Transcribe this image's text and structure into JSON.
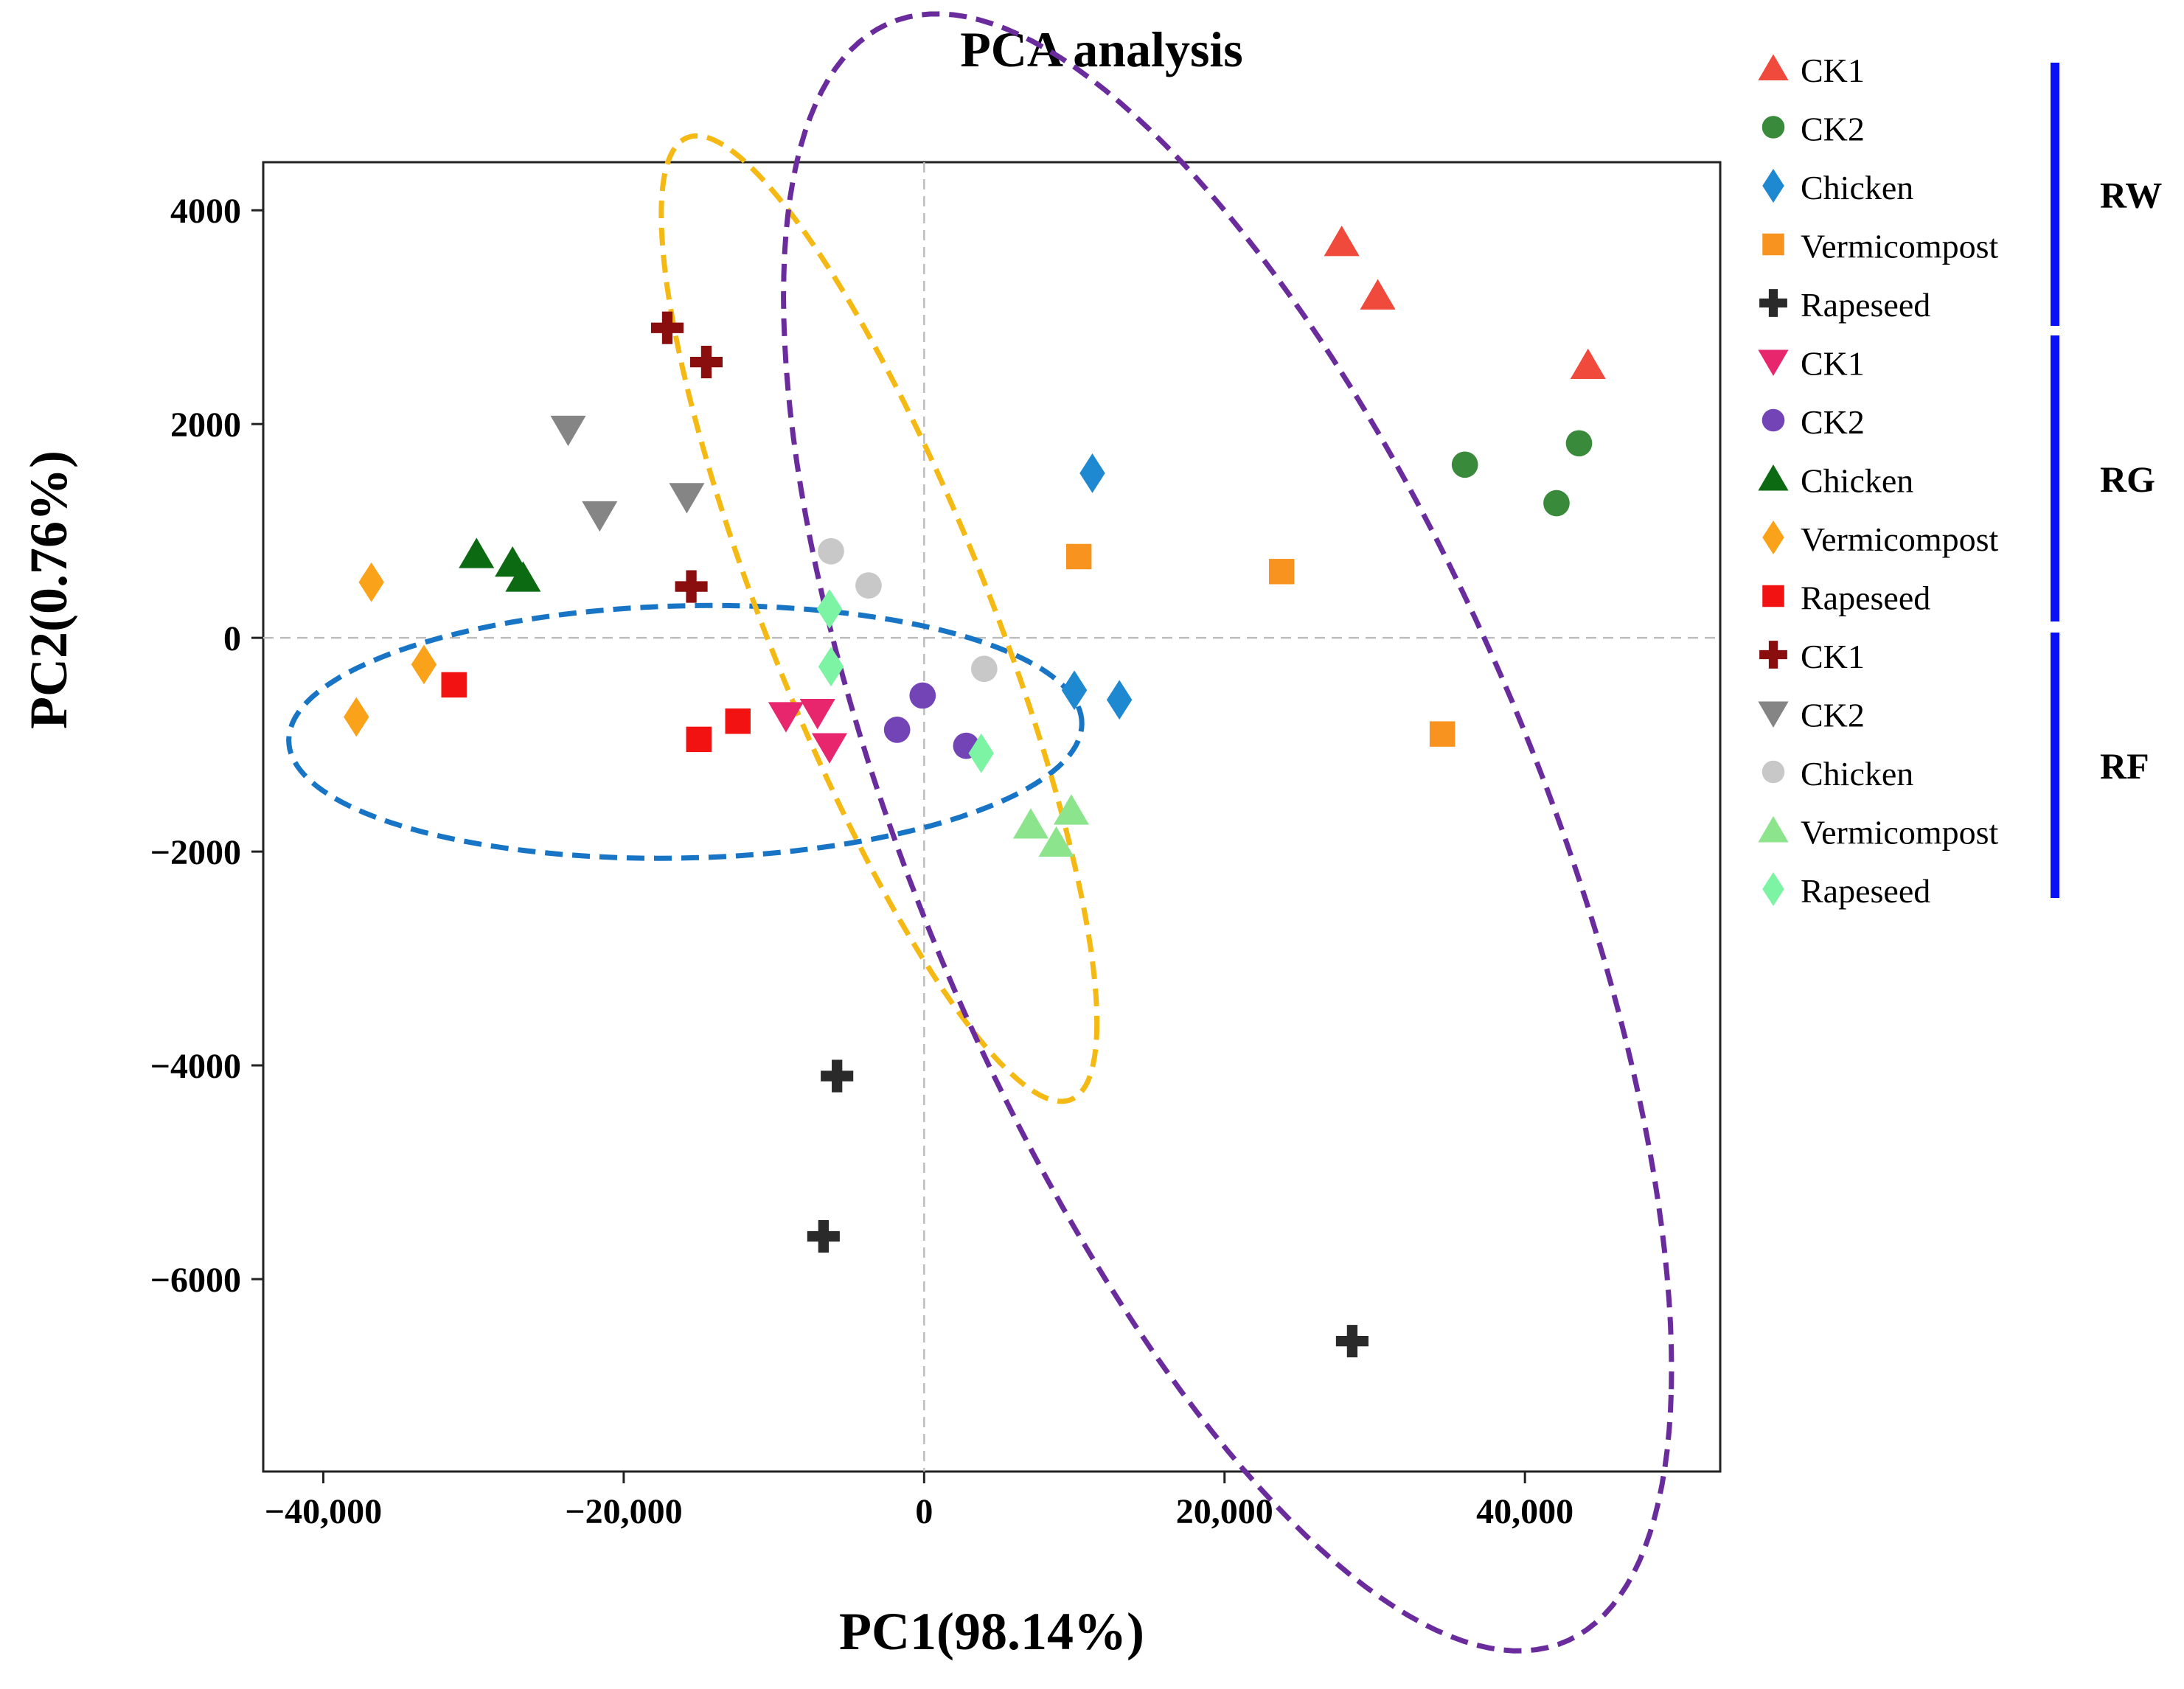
{
  "chart_data": {
    "type": "scatter",
    "title": "PCA analysis",
    "xlabel": "PC1(98.14%)",
    "ylabel": "PC2(0.76%)",
    "xlim": [
      -44000,
      53000
    ],
    "ylim": [
      -7800,
      4450
    ],
    "x_ticks": [
      -40000,
      -20000,
      0,
      20000,
      40000
    ],
    "x_tick_labels": [
      "−40,000",
      "−20,000",
      "0",
      "20,000",
      "40,000"
    ],
    "y_ticks": [
      -6000,
      -4000,
      -2000,
      0,
      2000,
      4000
    ],
    "y_tick_labels": [
      "−6000",
      "−4000",
      "−2000",
      "0",
      "2000",
      "4000"
    ],
    "grid": false,
    "zero_lines": true,
    "legend_position": "right",
    "groups": [
      {
        "label": "RW",
        "series": [
          0,
          1,
          2,
          3,
          4
        ]
      },
      {
        "label": "RG",
        "series": [
          5,
          6,
          7,
          8,
          9
        ]
      },
      {
        "label": "RF",
        "series": [
          10,
          11,
          12,
          13,
          14
        ]
      }
    ],
    "series": [
      {
        "name": "CK1",
        "marker": "triangle-up",
        "color": "#F04A3C",
        "points": [
          [
            27800,
            3700
          ],
          [
            30200,
            3200
          ],
          [
            44200,
            2550
          ]
        ]
      },
      {
        "name": "CK2",
        "marker": "circle",
        "color": "#3A8A3C",
        "points": [
          [
            36000,
            1620
          ],
          [
            43600,
            1820
          ],
          [
            42100,
            1260
          ]
        ]
      },
      {
        "name": "Chicken",
        "marker": "diamond",
        "color": "#1E88D0",
        "points": [
          [
            11200,
            1540
          ],
          [
            10000,
            -490
          ],
          [
            13000,
            -580
          ]
        ]
      },
      {
        "name": "Vermicompost",
        "marker": "square",
        "color": "#F7931E",
        "points": [
          [
            10300,
            760
          ],
          [
            23800,
            620
          ],
          [
            34500,
            -900
          ]
        ]
      },
      {
        "name": "Rapeseed",
        "marker": "cross",
        "color": "#2A2A2A",
        "points": [
          [
            -5800,
            -4100
          ],
          [
            -6700,
            -5600
          ],
          [
            28500,
            -6580
          ]
        ]
      },
      {
        "name": "CK1",
        "marker": "triangle-down",
        "color": "#E8266E",
        "points": [
          [
            -9200,
            -730
          ],
          [
            -7100,
            -700
          ],
          [
            -6300,
            -1020
          ]
        ]
      },
      {
        "name": "CK2",
        "marker": "circle",
        "color": "#7344B5",
        "points": [
          [
            -1800,
            -860
          ],
          [
            -100,
            -540
          ],
          [
            2800,
            -1010
          ]
        ]
      },
      {
        "name": "Chicken",
        "marker": "triangle-up",
        "color": "#0C6A12",
        "points": [
          [
            -29800,
            780
          ],
          [
            -27400,
            700
          ],
          [
            -26700,
            560
          ]
        ]
      },
      {
        "name": "Vermicompost",
        "marker": "diamond",
        "color": "#F9A21A",
        "points": [
          [
            -36800,
            520
          ],
          [
            -33300,
            -250
          ],
          [
            -37800,
            -740
          ]
        ]
      },
      {
        "name": "Rapeseed",
        "marker": "square",
        "color": "#F21212",
        "points": [
          [
            -31300,
            -440
          ],
          [
            -15000,
            -950
          ],
          [
            -12400,
            -780
          ]
        ]
      },
      {
        "name": "CK1",
        "marker": "cross",
        "color": "#8A0E0E",
        "points": [
          [
            -17100,
            2900
          ],
          [
            -14500,
            2580
          ],
          [
            -15500,
            480
          ]
        ]
      },
      {
        "name": "CK2",
        "marker": "triangle-down",
        "color": "#858585",
        "points": [
          [
            -23700,
            1950
          ],
          [
            -21600,
            1150
          ],
          [
            -15800,
            1320
          ]
        ]
      },
      {
        "name": "Chicken",
        "marker": "circle",
        "color": "#C8C8C8",
        "points": [
          [
            -6200,
            810
          ],
          [
            -3700,
            490
          ],
          [
            4000,
            -290
          ]
        ]
      },
      {
        "name": "Vermicompost",
        "marker": "triangle-up",
        "color": "#8CE48C",
        "points": [
          [
            7100,
            -1750
          ],
          [
            8800,
            -1920
          ],
          [
            9800,
            -1620
          ]
        ]
      },
      {
        "name": "Rapeseed",
        "marker": "diamond",
        "color": "#7CF4A4",
        "points": [
          [
            -6300,
            270
          ],
          [
            -6200,
            -270
          ],
          [
            3800,
            -1080
          ]
        ]
      }
    ],
    "ellipses": [
      {
        "color": "#1874C4",
        "center": [
          -15900,
          -880
        ],
        "rx": 26400,
        "ry": 1180,
        "angle_deg": 0.17
      },
      {
        "color": "#F5B914",
        "center": [
          -3000,
          180
        ],
        "rx": 15000,
        "ry": 2390,
        "angle_deg": -15.0
      },
      {
        "color": "#6A2C9C",
        "center": [
          20200,
          -1820
        ],
        "rx": 30000,
        "ry": 5700,
        "angle_deg": -10.0
      }
    ],
    "colors": {
      "group_bar": "#0A12F5",
      "zero_line": "#BDBDBD",
      "axis": "#222222"
    }
  }
}
